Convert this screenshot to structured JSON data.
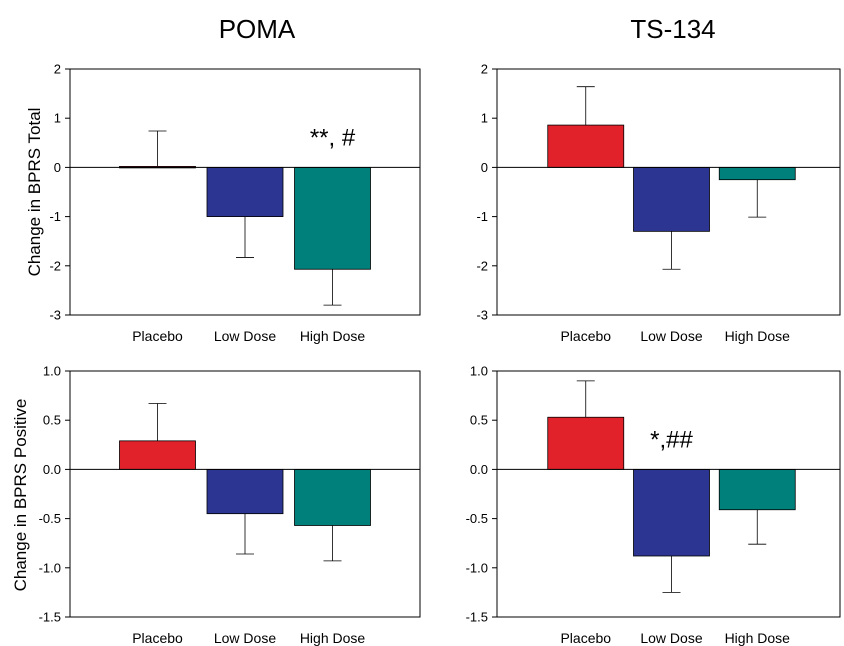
{
  "column_titles": [
    "POMA",
    "TS-134"
  ],
  "row_ylabels": [
    "Change in BPRS Total",
    "Change in BPRS Positive"
  ],
  "colors": {
    "Placebo": "#e2222b",
    "Low Dose": "#2d3592",
    "High Dose": "#00807a"
  },
  "chart_data": [
    {
      "type": "bar",
      "panel": "POMA - BPRS Total",
      "categories": [
        "Placebo",
        "Low Dose",
        "High Dose"
      ],
      "values": [
        0.02,
        -1.0,
        -2.07
      ],
      "error_bars": [
        0.72,
        0.83,
        0.73
      ],
      "ylim": [
        -3,
        2
      ],
      "yticks": [
        "2",
        "1",
        "0",
        "-1",
        "-2",
        "-3"
      ],
      "ylabel": "Change in BPRS Total",
      "annotation": {
        "text": "**, #",
        "category": "High Dose"
      }
    },
    {
      "type": "bar",
      "panel": "TS-134 - BPRS Total",
      "categories": [
        "Placebo",
        "Low Dose",
        "High Dose"
      ],
      "values": [
        0.86,
        -1.3,
        -0.25
      ],
      "error_bars": [
        0.78,
        0.77,
        0.76
      ],
      "ylim": [
        -3,
        2
      ],
      "yticks": [
        "2",
        "1",
        "0",
        "-1",
        "-2",
        "-3"
      ],
      "ylabel": ""
    },
    {
      "type": "bar",
      "panel": "POMA - BPRS Positive",
      "categories": [
        "Placebo",
        "Low Dose",
        "High Dose"
      ],
      "values": [
        0.29,
        -0.45,
        -0.57
      ],
      "error_bars": [
        0.38,
        0.41,
        0.36
      ],
      "ylim": [
        -1.5,
        1.0
      ],
      "yticks": [
        "1.0",
        "0.5",
        "0.0",
        "-0.5",
        "-1.0",
        "-1.5"
      ],
      "ylabel": "Change in BPRS Positive"
    },
    {
      "type": "bar",
      "panel": "TS-134 - BPRS Positive",
      "categories": [
        "Placebo",
        "Low Dose",
        "High Dose"
      ],
      "values": [
        0.53,
        -0.88,
        -0.41
      ],
      "error_bars": [
        0.37,
        0.37,
        0.35
      ],
      "ylim": [
        -1.5,
        1.0
      ],
      "yticks": [
        "1.0",
        "0.5",
        "0.0",
        "-0.5",
        "-1.0",
        "-1.5"
      ],
      "ylabel": "",
      "annotation": {
        "text": "*,##",
        "category": "Low Dose"
      }
    }
  ]
}
